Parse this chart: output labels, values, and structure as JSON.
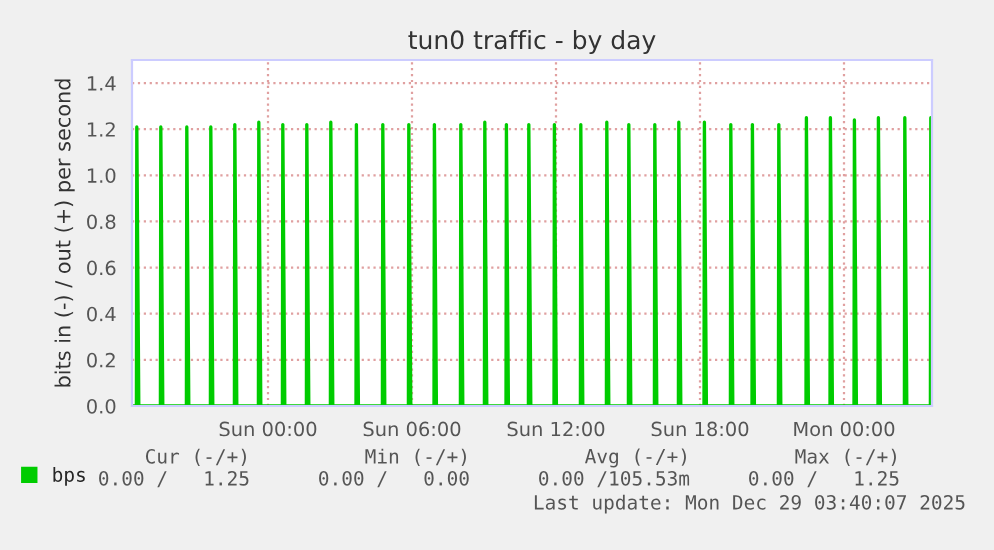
{
  "chart_data": {
    "type": "line",
    "title": "tun0 traffic - by day",
    "ylabel": "bits in (-) / out (+) per second",
    "xlim": [
      "2025-12-27T18:20",
      "2025-12-29T03:40"
    ],
    "xticks": [
      {
        "value": "2025-12-28T00:00",
        "label": "Sun 00:00"
      },
      {
        "value": "2025-12-28T06:00",
        "label": "Sun 06:00"
      },
      {
        "value": "2025-12-28T12:00",
        "label": "Sun 12:00"
      },
      {
        "value": "2025-12-28T18:00",
        "label": "Sun 18:00"
      },
      {
        "value": "2025-12-29T00:00",
        "label": "Mon 00:00"
      }
    ],
    "ylim": [
      0,
      1.5
    ],
    "yticks": [
      {
        "value": 0,
        "label": "0.0"
      },
      {
        "value": 0.2,
        "label": "0.2"
      },
      {
        "value": 0.4,
        "label": "0.4"
      },
      {
        "value": 0.6,
        "label": "0.6"
      },
      {
        "value": 0.8,
        "label": "0.8"
      },
      {
        "value": 1.0,
        "label": "1.0"
      },
      {
        "value": 1.2,
        "label": "1.2"
      },
      {
        "value": 1.4,
        "label": "1.4"
      }
    ],
    "grid": true,
    "legend": "bottom left",
    "marker": "none",
    "line_style": "solid",
    "series": [
      {
        "name": "bps",
        "color": "#00cc00",
        "x": [
          "2025-12-27T18:20",
          "2025-12-27T18:31",
          "2025-12-27T18:32",
          "2025-12-27T18:37",
          "2025-12-27T19:31",
          "2025-12-27T19:32",
          "2025-12-27T19:37",
          "2025-12-27T20:36",
          "2025-12-27T20:37",
          "2025-12-27T20:42",
          "2025-12-27T21:36",
          "2025-12-27T21:37",
          "2025-12-27T21:42",
          "2025-12-27T22:36",
          "2025-12-27T22:37",
          "2025-12-27T22:42",
          "2025-12-27T23:36",
          "2025-12-27T23:37",
          "2025-12-27T23:42",
          "2025-12-28T00:36",
          "2025-12-28T00:37",
          "2025-12-28T00:42",
          "2025-12-28T01:36",
          "2025-12-28T01:37",
          "2025-12-28T01:42",
          "2025-12-28T02:36",
          "2025-12-28T02:37",
          "2025-12-28T02:42",
          "2025-12-28T03:40",
          "2025-12-28T03:41",
          "2025-12-28T03:46",
          "2025-12-28T04:46",
          "2025-12-28T04:47",
          "2025-12-28T04:52",
          "2025-12-28T05:51",
          "2025-12-28T05:52",
          "2025-12-28T05:57",
          "2025-12-28T06:55",
          "2025-12-28T06:56",
          "2025-12-28T07:01",
          "2025-12-28T08:01",
          "2025-12-28T08:02",
          "2025-12-28T08:07",
          "2025-12-28T09:01",
          "2025-12-28T09:02",
          "2025-12-28T09:07",
          "2025-12-28T09:55",
          "2025-12-28T09:56",
          "2025-12-28T10:01",
          "2025-12-28T10:51",
          "2025-12-28T10:52",
          "2025-12-28T10:57",
          "2025-12-28T11:55",
          "2025-12-28T11:56",
          "2025-12-28T12:01",
          "2025-12-28T13:01",
          "2025-12-28T13:02",
          "2025-12-28T13:07",
          "2025-12-28T14:06",
          "2025-12-28T14:07",
          "2025-12-28T14:12",
          "2025-12-28T15:01",
          "2025-12-28T15:02",
          "2025-12-28T15:07",
          "2025-12-28T16:06",
          "2025-12-28T16:07",
          "2025-12-28T16:12",
          "2025-12-28T17:06",
          "2025-12-28T17:07",
          "2025-12-28T17:12",
          "2025-12-28T18:10",
          "2025-12-28T18:11",
          "2025-12-28T18:16",
          "2025-12-28T19:16",
          "2025-12-28T19:17",
          "2025-12-28T19:22",
          "2025-12-28T20:10",
          "2025-12-28T20:11",
          "2025-12-28T20:16",
          "2025-12-28T21:16",
          "2025-12-28T21:17",
          "2025-12-28T21:22",
          "2025-12-28T22:25",
          "2025-12-28T22:26",
          "2025-12-28T22:31",
          "2025-12-28T23:25",
          "2025-12-28T23:26",
          "2025-12-28T23:31",
          "2025-12-29T00:25",
          "2025-12-29T00:26",
          "2025-12-29T00:31",
          "2025-12-29T01:25",
          "2025-12-29T01:26",
          "2025-12-29T01:31",
          "2025-12-29T02:31",
          "2025-12-29T02:32",
          "2025-12-29T02:37",
          "2025-12-29T03:36",
          "2025-12-29T03:37"
        ],
        "values": [
          0,
          0,
          1.21,
          0,
          0,
          1.21,
          0,
          0,
          1.21,
          0,
          0,
          1.21,
          0,
          0,
          1.22,
          0,
          0,
          1.23,
          0,
          0,
          1.22,
          0,
          0,
          1.22,
          0,
          0,
          1.23,
          0,
          0,
          1.22,
          0,
          0,
          1.22,
          0,
          0,
          1.22,
          0,
          0,
          1.22,
          0,
          0,
          1.22,
          0,
          0,
          1.23,
          0,
          0,
          1.22,
          0,
          0,
          1.22,
          0,
          0,
          1.22,
          0,
          0,
          1.22,
          0,
          0,
          1.23,
          0,
          0,
          1.22,
          0,
          0,
          1.22,
          0,
          0,
          1.23,
          0,
          0,
          1.23,
          0,
          0,
          1.22,
          0,
          0,
          1.22,
          0,
          0,
          1.22,
          0,
          0,
          1.25,
          0,
          0,
          1.25,
          0,
          0,
          1.24,
          0,
          0,
          1.25,
          0,
          0,
          1.25,
          0,
          0,
          1.25
        ]
      }
    ],
    "annotations": [
      "Cur (-/+)",
      "Min (-/+)",
      "Avg (-/+)",
      "Max (-/+)",
      "0.00 /   1.25",
      "0.00 /   0.00",
      "0.00 /105.53m",
      "0.00 /   1.25",
      "Last update: Mon Dec 29 03:40:07 2025"
    ]
  }
}
